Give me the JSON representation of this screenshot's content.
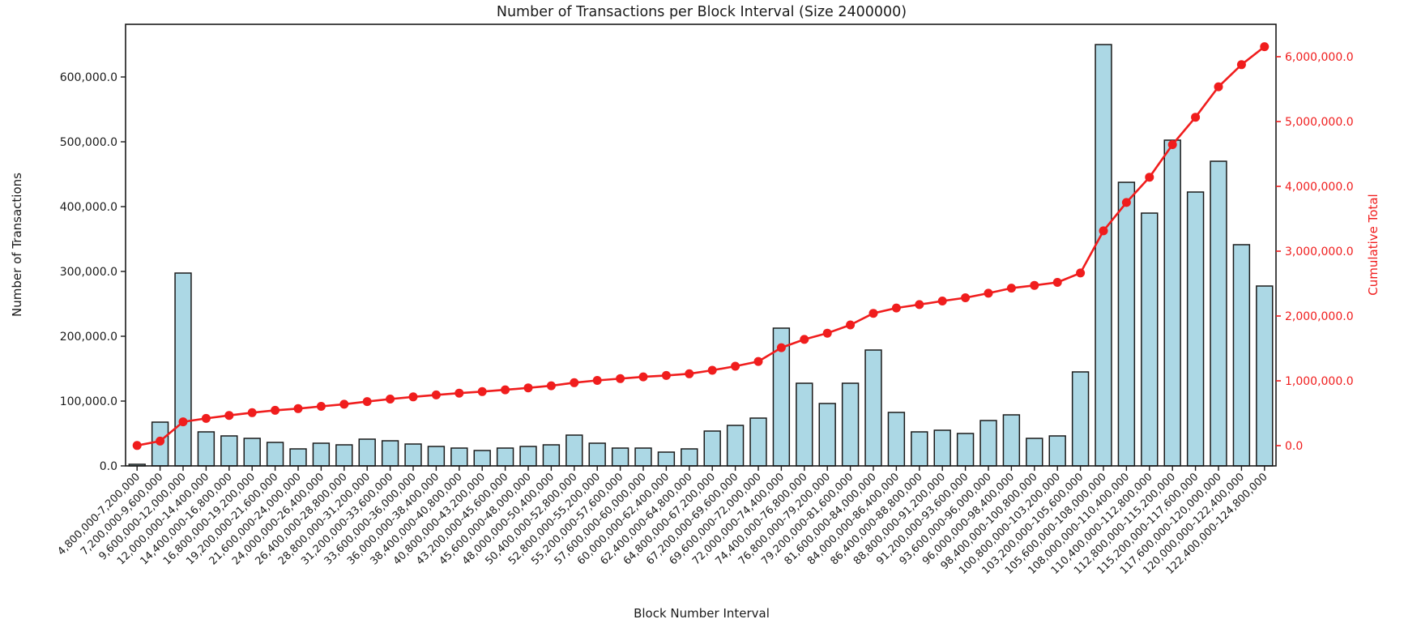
{
  "title": "Number of Transactions per Block Interval (Size 2400000)",
  "axes": {
    "x_label": "Block Number Interval",
    "y_left_label": "Number of Transactions",
    "y_right_label": "Cumulative Total",
    "y_left_tick_labels": [
      "0.0",
      "100,000.0",
      "200,000.0",
      "300,000.0",
      "400,000.0",
      "500,000.0",
      "600,000.0"
    ],
    "y_left_tick_values": [
      0,
      100000,
      200000,
      300000,
      400000,
      500000,
      600000
    ],
    "y_right_tick_labels": [
      "0.0",
      "1,000,000.0",
      "2,000,000.0",
      "3,000,000.0",
      "4,000,000.0",
      "5,000,000.0",
      "6,000,000.0"
    ],
    "y_right_tick_values": [
      0,
      1000000,
      2000000,
      3000000,
      4000000,
      5000000,
      6000000
    ]
  },
  "colors": {
    "bar_fill": "#ACD8E5",
    "bar_edge": "#1a1a1a",
    "line_red": "#f01d1d",
    "axis_black": "#1a1a1a",
    "background": "#ffffff"
  },
  "chart_data": {
    "type": "bar",
    "note": "bar series on left axis, cumulative line+markers on right axis",
    "categories": [
      "4,800,000-7,200,000",
      "7,200,000-9,600,000",
      "9,600,000-12,000,000",
      "12,000,000-14,400,000",
      "14,400,000-16,800,000",
      "16,800,000-19,200,000",
      "19,200,000-21,600,000",
      "21,600,000-24,000,000",
      "24,000,000-26,400,000",
      "26,400,000-28,800,000",
      "28,800,000-31,200,000",
      "31,200,000-33,600,000",
      "33,600,000-36,000,000",
      "36,000,000-38,400,000",
      "38,400,000-40,800,000",
      "40,800,000-43,200,000",
      "43,200,000-45,600,000",
      "45,600,000-48,000,000",
      "48,000,000-50,400,000",
      "50,400,000-52,800,000",
      "52,800,000-55,200,000",
      "55,200,000-57,600,000",
      "57,600,000-60,000,000",
      "60,000,000-62,400,000",
      "62,400,000-64,800,000",
      "64,800,000-67,200,000",
      "67,200,000-69,600,000",
      "69,600,000-72,000,000",
      "72,000,000-74,400,000",
      "74,400,000-76,800,000",
      "76,800,000-79,200,000",
      "79,200,000-81,600,000",
      "81,600,000-84,000,000",
      "84,000,000-86,400,000",
      "86,400,000-88,800,000",
      "88,800,000-91,200,000",
      "91,200,000-93,600,000",
      "93,600,000-96,000,000",
      "96,000,000-98,400,000",
      "98,400,000-100,800,000",
      "100,800,000-103,200,000",
      "103,200,000-105,600,000",
      "105,600,000-108,000,000",
      "108,000,000-110,400,000",
      "110,400,000-112,800,000",
      "112,800,000-115,200,000",
      "115,200,000-117,600,000",
      "117,600,000-120,000,000",
      "120,000,000-122,400,000",
      "122,400,000-124,800,000"
    ],
    "series": [
      {
        "name": "Number of Transactions",
        "type": "bar",
        "axis": "left",
        "values": [
          2500,
          67500,
          297500,
          52500,
          46250,
          42500,
          36250,
          26250,
          35000,
          32500,
          41250,
          38750,
          33750,
          30000,
          27500,
          23750,
          27500,
          30000,
          32500,
          47500,
          35000,
          27500,
          27500,
          21250,
          26250,
          53750,
          62500,
          73750,
          212500,
          127500,
          96250,
          127500,
          178750,
          82500,
          52500,
          55000,
          50000,
          70000,
          78750,
          42500,
          46250,
          145000,
          650000,
          437500,
          390000,
          502500,
          422500,
          470000,
          341250,
          277500
        ]
      },
      {
        "name": "Cumulative Total",
        "type": "line",
        "axis": "right",
        "values": [
          2500,
          70000,
          367500,
          420000,
          466250,
          508750,
          545000,
          571250,
          606250,
          638750,
          680000,
          718750,
          752500,
          782500,
          810000,
          833750,
          861250,
          891250,
          923750,
          971250,
          1006250,
          1033750,
          1061250,
          1082500,
          1108750,
          1162500,
          1225000,
          1298750,
          1511250,
          1638750,
          1735000,
          1862500,
          2041250,
          2123750,
          2176250,
          2231250,
          2281250,
          2351250,
          2430000,
          2472500,
          2518750,
          2663750,
          3313750,
          3751250,
          4141250,
          4643750,
          5066250,
          5536250,
          5877500,
          6155000
        ]
      }
    ],
    "title": "Number of Transactions per Block Interval (Size 2400000)",
    "xlabel": "Block Number Interval",
    "ylabel_left": "Number of Transactions",
    "ylabel_right": "Cumulative Total",
    "ylim_left": [
      0,
      681250
    ],
    "ylim_right": [
      -312500,
      6500000
    ],
    "grid": false,
    "legend": "none"
  }
}
